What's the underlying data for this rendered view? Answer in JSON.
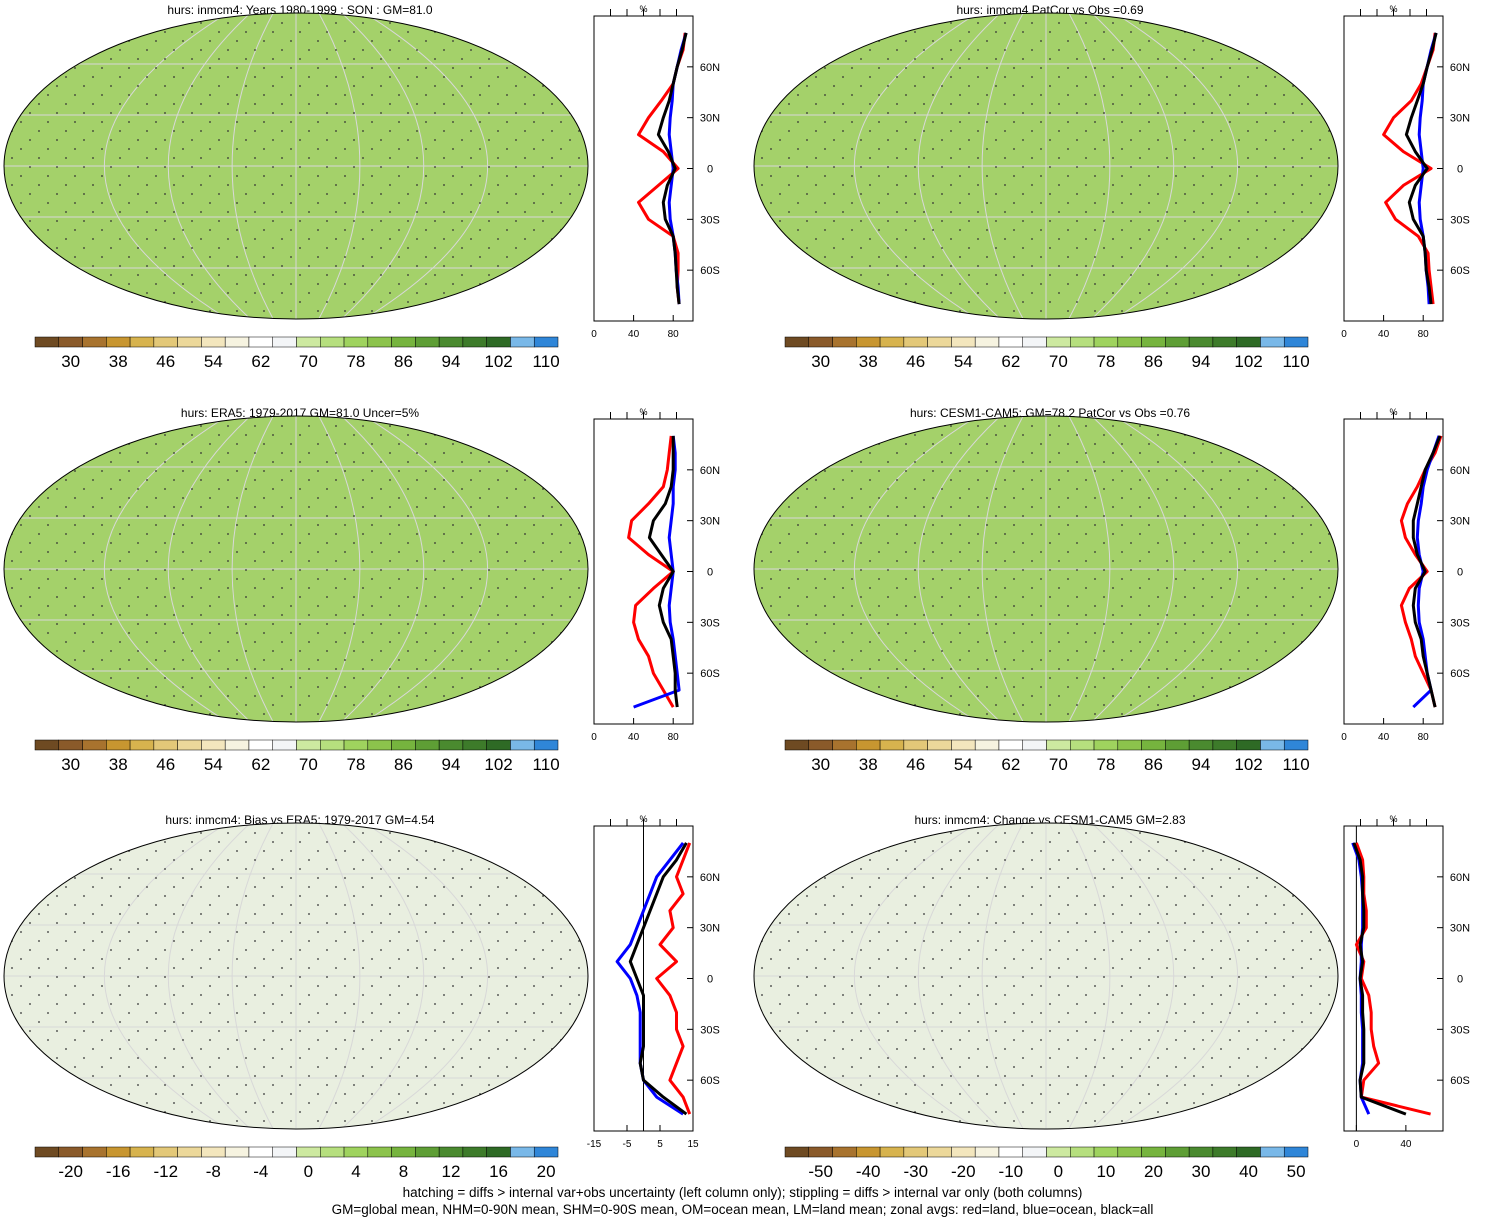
{
  "colors": {
    "land": "#ff0000",
    "ocean": "#0000ff",
    "all": "#000000",
    "palette": [
      "#6e4a22",
      "#8a5a2a",
      "#a8732e",
      "#c89630",
      "#d7b34e",
      "#e3c878",
      "#ecd89a",
      "#f3e6bd",
      "#f6f3e0",
      "#ffffff",
      "#f3f5f7",
      "#cde9a0",
      "#b6df7e",
      "#9fd35e",
      "#8cc34c",
      "#76b43e",
      "#5e9e35",
      "#4a8a2f",
      "#3d7b2a",
      "#2e6a25",
      "#79b8e8",
      "#2f86d8"
    ],
    "map_fill": "#a4d16a",
    "map_fill_bias": "#e9efe0"
  },
  "footer": {
    "line1": "hatching = diffs > internal var+obs uncertainty (left column only); stippling = diffs > internal var only (both columns)",
    "line2": "GM=global mean, NHM=0-90N mean, SHM=0-90S mean, OM=ocean mean, LM=land mean; zonal avgs: red=land, blue=ocean, black=all"
  },
  "chart_data": [
    {
      "type": "heatmap",
      "title": "hurs: inmcm4: Years 1980-1999 : SON : GM=81.0",
      "colorbar_labels": [
        "30",
        "38",
        "46",
        "54",
        "62",
        "70",
        "78",
        "86",
        "94",
        "102",
        "110"
      ],
      "zonal_unit": "%",
      "zonal_xticks": [
        "0",
        "40",
        "80"
      ],
      "zonal_xrange": [
        0,
        100
      ],
      "lat_ticks": [
        "60N",
        "30N",
        "0",
        "30S",
        "60S"
      ],
      "zonal_series": {
        "lat": [
          80,
          70,
          60,
          50,
          40,
          30,
          20,
          10,
          0,
          -10,
          -20,
          -30,
          -40,
          -50,
          -60,
          -70,
          -80
        ],
        "land": [
          92,
          90,
          84,
          80,
          68,
          55,
          45,
          70,
          85,
          65,
          45,
          55,
          80,
          85,
          85,
          84,
          86
        ],
        "ocean": [
          93,
          88,
          84,
          80,
          79,
          77,
          76,
          78,
          80,
          78,
          76,
          77,
          80,
          82,
          83,
          85,
          86
        ],
        "all": [
          93,
          89,
          84,
          80,
          76,
          70,
          65,
          75,
          82,
          74,
          70,
          72,
          80,
          82,
          83,
          84,
          86
        ]
      }
    },
    {
      "type": "heatmap",
      "title": "hurs: inmcm4 PatCor vs Obs =0.69",
      "colorbar_labels": [
        "30",
        "38",
        "46",
        "54",
        "62",
        "70",
        "78",
        "86",
        "94",
        "102",
        "110"
      ],
      "zonal_unit": "%",
      "zonal_xticks": [
        "0",
        "40",
        "80"
      ],
      "zonal_xrange": [
        0,
        100
      ],
      "lat_ticks": [
        "60N",
        "30N",
        "0",
        "30S",
        "60S"
      ],
      "zonal_series": {
        "lat": [
          80,
          70,
          60,
          50,
          40,
          30,
          20,
          10,
          0,
          -10,
          -20,
          -30,
          -40,
          -50,
          -60,
          -70,
          -80
        ],
        "land": [
          92,
          90,
          84,
          78,
          68,
          50,
          40,
          60,
          88,
          60,
          42,
          52,
          75,
          85,
          86,
          88,
          90
        ],
        "ocean": [
          93,
          88,
          84,
          80,
          79,
          77,
          76,
          78,
          80,
          78,
          76,
          77,
          80,
          82,
          83,
          85,
          86
        ],
        "all": [
          93,
          89,
          84,
          80,
          74,
          68,
          63,
          72,
          84,
          72,
          66,
          70,
          80,
          82,
          83,
          86,
          88
        ]
      }
    },
    {
      "type": "heatmap",
      "title": "hurs: ERA5: 1979-2017 GM=81.0 Uncer=5%",
      "colorbar_labels": [
        "30",
        "38",
        "46",
        "54",
        "62",
        "70",
        "78",
        "86",
        "94",
        "102",
        "110"
      ],
      "zonal_unit": "%",
      "zonal_xticks": [
        "0",
        "40",
        "80"
      ],
      "zonal_xrange": [
        0,
        100
      ],
      "lat_ticks": [
        "60N",
        "30N",
        "0",
        "30S",
        "60S"
      ],
      "zonal_series": {
        "lat": [
          80,
          70,
          60,
          50,
          40,
          30,
          20,
          10,
          0,
          -10,
          -20,
          -30,
          -40,
          -50,
          -60,
          -70,
          -80
        ],
        "land": [
          78,
          76,
          74,
          70,
          55,
          38,
          35,
          55,
          80,
          60,
          42,
          40,
          45,
          55,
          60,
          70,
          80
        ],
        "ocean": [
          80,
          82,
          82,
          80,
          80,
          78,
          76,
          78,
          80,
          78,
          76,
          77,
          80,
          82,
          84,
          86,
          40
        ],
        "all": [
          80,
          80,
          80,
          78,
          72,
          60,
          56,
          68,
          80,
          70,
          66,
          70,
          78,
          80,
          82,
          82,
          84
        ]
      }
    },
    {
      "type": "heatmap",
      "title": "hurs: CESM1-CAM5: GM=78.2 PatCor vs Obs =0.76",
      "colorbar_labels": [
        "30",
        "38",
        "46",
        "54",
        "62",
        "70",
        "78",
        "86",
        "94",
        "102",
        "110"
      ],
      "zonal_unit": "%",
      "zonal_xticks": [
        "0",
        "40",
        "80"
      ],
      "zonal_xrange": [
        0,
        100
      ],
      "lat_ticks": [
        "60N",
        "30N",
        "0",
        "30S",
        "60S"
      ],
      "zonal_series": {
        "lat": [
          80,
          70,
          60,
          50,
          40,
          30,
          20,
          10,
          0,
          -10,
          -20,
          -30,
          -40,
          -50,
          -60,
          -70,
          -80
        ],
        "land": [
          98,
          92,
          82,
          74,
          64,
          58,
          62,
          72,
          84,
          66,
          58,
          62,
          68,
          72,
          80,
          88,
          92
        ],
        "ocean": [
          96,
          90,
          84,
          80,
          78,
          75,
          74,
          76,
          80,
          76,
          75,
          76,
          80,
          82,
          84,
          88,
          70
        ],
        "all": [
          97,
          90,
          82,
          78,
          74,
          70,
          70,
          74,
          82,
          72,
          70,
          72,
          78,
          80,
          84,
          88,
          92
        ]
      }
    },
    {
      "type": "heatmap",
      "title": "hurs: inmcm4: Bias vs ERA5: 1979-2017  GM=4.54",
      "colorbar_labels": [
        "-20",
        "-16",
        "-12",
        "-8",
        "-4",
        "0",
        "4",
        "8",
        "12",
        "16",
        "20"
      ],
      "zonal_unit": "%",
      "zonal_xticks": [
        "-15",
        "-5",
        "5",
        "15"
      ],
      "zonal_xrange": [
        -15,
        15
      ],
      "lat_ticks": [
        "60N",
        "30N",
        "0",
        "30S",
        "60S"
      ],
      "zonal_series": {
        "lat": [
          80,
          70,
          60,
          50,
          40,
          30,
          20,
          10,
          0,
          -10,
          -20,
          -30,
          -40,
          -50,
          -60,
          -70,
          -80
        ],
        "land": [
          14,
          12,
          10,
          12,
          8,
          9,
          5,
          10,
          4,
          8,
          10,
          10,
          12,
          10,
          8,
          12,
          14
        ],
        "ocean": [
          12,
          8,
          4,
          2,
          0,
          -2,
          -4,
          -8,
          -4,
          -2,
          -1,
          -1,
          -1,
          -1,
          0,
          4,
          12
        ],
        "all": [
          13,
          10,
          6,
          4,
          2,
          0,
          -2,
          -4,
          -2,
          0,
          0,
          0,
          0,
          -1,
          0,
          6,
          13
        ]
      }
    },
    {
      "type": "heatmap",
      "title": "hurs: inmcm4: Change vs CESM1-CAM5 GM=2.83",
      "colorbar_labels": [
        "-50",
        "-40",
        "-30",
        "-20",
        "-10",
        "0",
        "10",
        "20",
        "30",
        "40",
        "50"
      ],
      "zonal_unit": "%",
      "zonal_xticks": [
        "0",
        "40"
      ],
      "zonal_xrange": [
        -10,
        70
      ],
      "lat_ticks": [
        "60N",
        "30N",
        "0",
        "30S",
        "60S"
      ],
      "zonal_series": {
        "lat": [
          80,
          70,
          60,
          50,
          40,
          30,
          20,
          10,
          0,
          -10,
          -20,
          -30,
          -40,
          -50,
          -60,
          -70,
          -80
        ],
        "land": [
          0,
          5,
          6,
          6,
          8,
          8,
          0,
          6,
          4,
          10,
          12,
          12,
          14,
          18,
          6,
          4,
          60
        ],
        "ocean": [
          -3,
          2,
          4,
          5,
          5,
          5,
          4,
          4,
          3,
          4,
          4,
          5,
          5,
          5,
          3,
          4,
          10
        ],
        "all": [
          -2,
          3,
          5,
          5,
          6,
          6,
          3,
          5,
          3,
          5,
          5,
          6,
          6,
          6,
          3,
          4,
          40
        ]
      }
    }
  ]
}
